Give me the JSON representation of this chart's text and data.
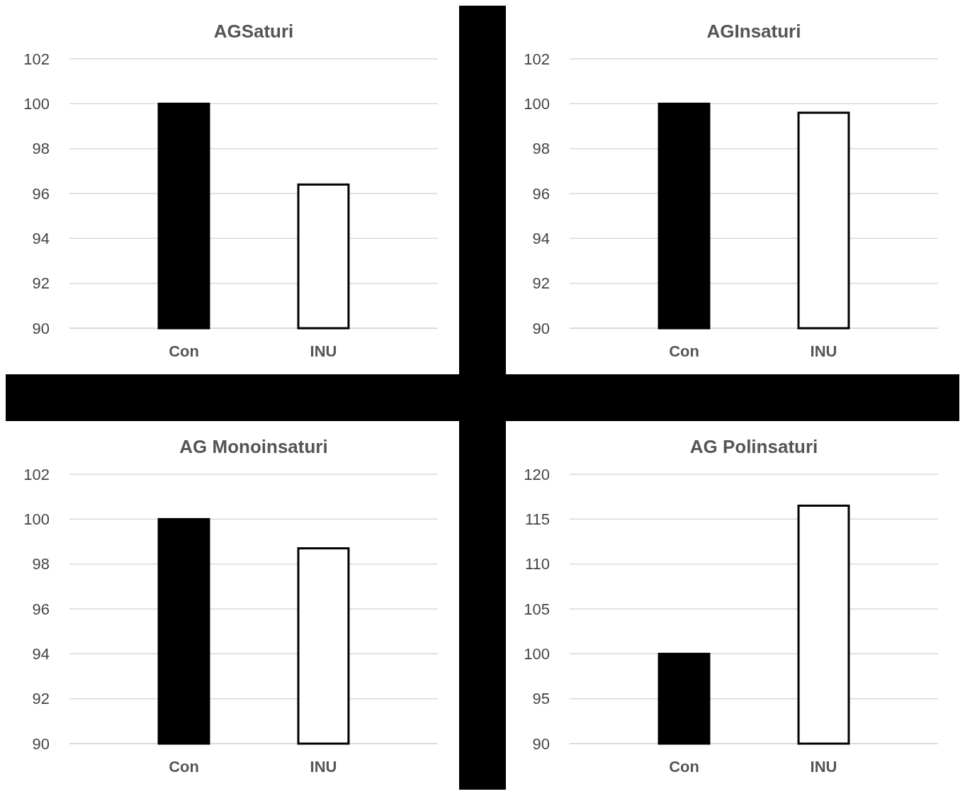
{
  "chart_data": [
    {
      "type": "bar",
      "title": "AGSaturi",
      "categories": [
        "Con",
        "INU"
      ],
      "values": [
        100,
        96.4
      ],
      "colors": [
        "#000000",
        "#ffffff"
      ],
      "ylim": [
        90,
        102
      ],
      "yticks": [
        90,
        92,
        94,
        96,
        98,
        100,
        102
      ],
      "grid": "y"
    },
    {
      "type": "bar",
      "title": "AGInsaturi",
      "categories": [
        "Con",
        "INU"
      ],
      "values": [
        100,
        99.6
      ],
      "colors": [
        "#000000",
        "#ffffff"
      ],
      "ylim": [
        90,
        102
      ],
      "yticks": [
        90,
        92,
        94,
        96,
        98,
        100,
        102
      ],
      "grid": "y"
    },
    {
      "type": "bar",
      "title": "AG Monoinsaturi",
      "categories": [
        "Con",
        "INU"
      ],
      "values": [
        100,
        98.7
      ],
      "colors": [
        "#000000",
        "#ffffff"
      ],
      "ylim": [
        90,
        102
      ],
      "yticks": [
        90,
        92,
        94,
        96,
        98,
        100,
        102
      ],
      "grid": "y"
    },
    {
      "type": "bar",
      "title": "AG Polinsaturi",
      "categories": [
        "Con",
        "INU"
      ],
      "values": [
        100,
        116.5
      ],
      "colors": [
        "#000000",
        "#ffffff"
      ],
      "ylim": [
        90,
        120
      ],
      "yticks": [
        90,
        95,
        100,
        105,
        110,
        115,
        120
      ],
      "grid": "y"
    }
  ]
}
